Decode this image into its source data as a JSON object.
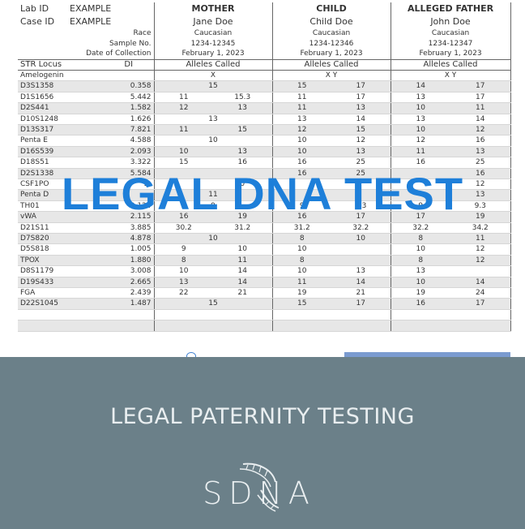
{
  "header": {
    "lab_id_label": "Lab ID",
    "lab_id_value": "EXAMPLE",
    "case_id_label": "Case ID",
    "case_id_value": "EXAMPLE",
    "race_label": "Race",
    "sample_label": "Sample No.",
    "date_label": "Date of Collection"
  },
  "parties": [
    {
      "role": "MOTHER",
      "name": "Jane Doe",
      "race": "Caucasian",
      "sample": "1234-12345",
      "date": "February 1, 2023"
    },
    {
      "role": "CHILD",
      "name": "Child Doe",
      "race": "Caucasian",
      "sample": "1234-12346",
      "date": "February 1, 2023"
    },
    {
      "role": "ALLEGED FATHER",
      "name": "John Doe",
      "race": "Caucasian",
      "sample": "1234-12347",
      "date": "February 1, 2023"
    }
  ],
  "columns": {
    "locus": "STR Locus",
    "di": "DI",
    "mother": "Alleles Called",
    "child": "Alleles Called",
    "father": "Alleles Called"
  },
  "loci": [
    {
      "name": "Amelogenin",
      "di": "",
      "m": [
        "X",
        ""
      ],
      "c": [
        "X Y",
        ""
      ],
      "f": [
        "X Y",
        ""
      ]
    },
    {
      "name": "D3S1358",
      "di": "0.358",
      "m": [
        "15",
        ""
      ],
      "c": [
        "15",
        "17"
      ],
      "f": [
        "14",
        "17"
      ]
    },
    {
      "name": "D1S1656",
      "di": "5.442",
      "m": [
        "11",
        "15.3"
      ],
      "c": [
        "11",
        "17"
      ],
      "f": [
        "13",
        "17"
      ]
    },
    {
      "name": "D2S441",
      "di": "1.582",
      "m": [
        "12",
        "13"
      ],
      "c": [
        "11",
        "13"
      ],
      "f": [
        "10",
        "11"
      ]
    },
    {
      "name": "D10S1248",
      "di": "1.626",
      "m": [
        "13",
        ""
      ],
      "c": [
        "13",
        "14"
      ],
      "f": [
        "13",
        "14"
      ]
    },
    {
      "name": "D13S317",
      "di": "7.821",
      "m": [
        "11",
        "15"
      ],
      "c": [
        "12",
        "15"
      ],
      "f": [
        "10",
        "12"
      ]
    },
    {
      "name": "Penta E",
      "di": "4.588",
      "m": [
        "10",
        ""
      ],
      "c": [
        "10",
        "12"
      ],
      "f": [
        "12",
        "16"
      ]
    },
    {
      "name": "D16S539",
      "di": "2.093",
      "m": [
        "10",
        "13"
      ],
      "c": [
        "10",
        "13"
      ],
      "f": [
        "11",
        "13"
      ]
    },
    {
      "name": "D18S51",
      "di": "3.322",
      "m": [
        "15",
        "16"
      ],
      "c": [
        "16",
        "25"
      ],
      "f": [
        "16",
        "25"
      ]
    },
    {
      "name": "D2S1338",
      "di": "5.584",
      "m": [
        "",
        ""
      ],
      "c": [
        "16",
        "25"
      ],
      "f": [
        "",
        "16"
      ]
    },
    {
      "name": "CSF1PO",
      "di": "2.",
      "m": [
        "",
        "0"
      ],
      "c": [
        "",
        ""
      ],
      "f": [
        "",
        "12"
      ]
    },
    {
      "name": "Penta D",
      "di": "",
      "m": [
        "11",
        ""
      ],
      "c": [
        "",
        ""
      ],
      "f": [
        "",
        "13"
      ]
    },
    {
      "name": "TH01",
      "di": "2.124",
      "m": [
        "9",
        ""
      ],
      "c": [
        "9",
        "9.3"
      ],
      "f": [
        "9",
        "9.3"
      ]
    },
    {
      "name": "vWA",
      "di": "2.115",
      "m": [
        "16",
        "19"
      ],
      "c": [
        "16",
        "17"
      ],
      "f": [
        "17",
        "19"
      ]
    },
    {
      "name": "D21S11",
      "di": "3.885",
      "m": [
        "30.2",
        "31.2"
      ],
      "c": [
        "31.2",
        "32.2"
      ],
      "f": [
        "32.2",
        "34.2"
      ]
    },
    {
      "name": "D7S820",
      "di": "4.878",
      "m": [
        "10",
        ""
      ],
      "c": [
        "8",
        "10"
      ],
      "f": [
        "8",
        "11"
      ]
    },
    {
      "name": "D5S818",
      "di": "1.005",
      "m": [
        "9",
        "10"
      ],
      "c": [
        "10",
        ""
      ],
      "f": [
        "10",
        "12"
      ]
    },
    {
      "name": "TPOX",
      "di": "1.880",
      "m": [
        "8",
        "11"
      ],
      "c": [
        "8",
        ""
      ],
      "f": [
        "8",
        "12"
      ]
    },
    {
      "name": "D8S1179",
      "di": "3.008",
      "m": [
        "10",
        "14"
      ],
      "c": [
        "10",
        "13"
      ],
      "f": [
        "13",
        ""
      ]
    },
    {
      "name": "D19S433",
      "di": "2.665",
      "m": [
        "13",
        "14"
      ],
      "c": [
        "11",
        "14"
      ],
      "f": [
        "10",
        "14"
      ]
    },
    {
      "name": "FGA",
      "di": "2.439",
      "m": [
        "22",
        "21"
      ],
      "c": [
        "19",
        "21"
      ],
      "f": [
        "19",
        "24"
      ]
    },
    {
      "name": "D22S1045",
      "di": "1.487",
      "m": [
        "15",
        ""
      ],
      "c": [
        "15",
        "17"
      ],
      "f": [
        "16",
        "17"
      ]
    }
  ],
  "watermark": "LEGAL DNA TEST",
  "footer": {
    "title": "LEGAL PATERNITY TESTING",
    "logo_text": "SDNA",
    "logo_icon": "dna-helix-icon",
    "background": "#6b8089",
    "watermark_color": "#1e7fd9"
  }
}
